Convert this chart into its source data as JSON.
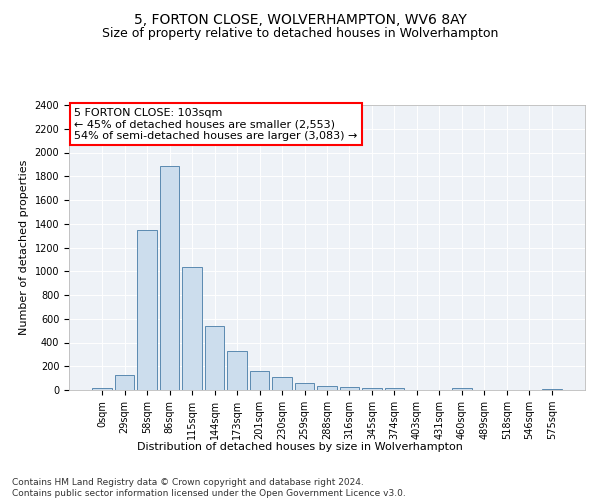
{
  "title": "5, FORTON CLOSE, WOLVERHAMPTON, WV6 8AY",
  "subtitle": "Size of property relative to detached houses in Wolverhampton",
  "xlabel": "Distribution of detached houses by size in Wolverhampton",
  "ylabel": "Number of detached properties",
  "footer_line1": "Contains HM Land Registry data © Crown copyright and database right 2024.",
  "footer_line2": "Contains public sector information licensed under the Open Government Licence v3.0.",
  "annotation_line1": "5 FORTON CLOSE: 103sqm",
  "annotation_line2": "← 45% of detached houses are smaller (2,553)",
  "annotation_line3": "54% of semi-detached houses are larger (3,083) →",
  "bar_color": "#ccdded",
  "bar_edge_color": "#5a8ab0",
  "background_color": "#eef2f7",
  "categories": [
    "0sqm",
    "29sqm",
    "58sqm",
    "86sqm",
    "115sqm",
    "144sqm",
    "173sqm",
    "201sqm",
    "230sqm",
    "259sqm",
    "288sqm",
    "316sqm",
    "345sqm",
    "374sqm",
    "403sqm",
    "431sqm",
    "460sqm",
    "489sqm",
    "518sqm",
    "546sqm",
    "575sqm"
  ],
  "values": [
    15,
    130,
    1350,
    1890,
    1040,
    540,
    330,
    160,
    110,
    55,
    35,
    28,
    20,
    15,
    0,
    0,
    20,
    0,
    0,
    0,
    12
  ],
  "ylim": [
    0,
    2400
  ],
  "yticks": [
    0,
    200,
    400,
    600,
    800,
    1000,
    1200,
    1400,
    1600,
    1800,
    2000,
    2200,
    2400
  ],
  "title_fontsize": 10,
  "subtitle_fontsize": 9,
  "axis_label_fontsize": 8,
  "tick_fontsize": 7,
  "annotation_fontsize": 8,
  "footer_fontsize": 6.5
}
